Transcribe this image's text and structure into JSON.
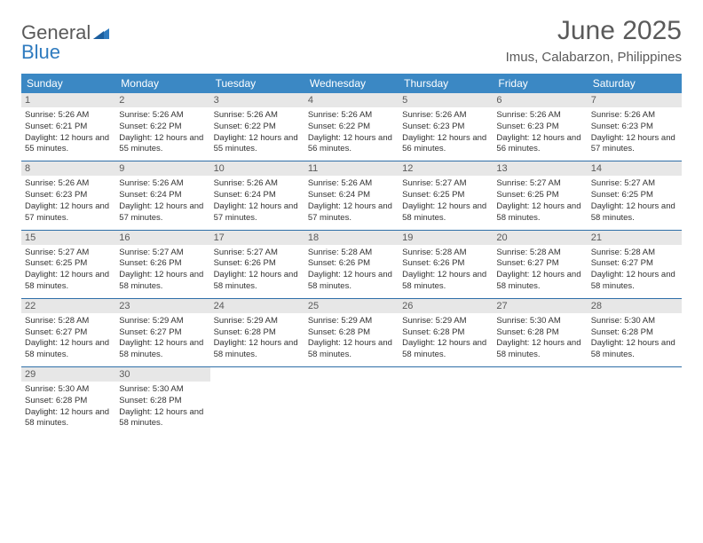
{
  "logo": {
    "general": "General",
    "blue": "Blue"
  },
  "title": "June 2025",
  "location": "Imus, Calabarzon, Philippines",
  "colors": {
    "header_bg": "#3b88c4",
    "header_text": "#ffffff",
    "daynum_bg": "#e7e7e7",
    "daynum_text": "#5a5a5a",
    "week_divider": "#2f6fa8",
    "body_text": "#333333",
    "title_text": "#5a5a5a",
    "logo_gray": "#5a5a5a",
    "logo_blue": "#2f7bbf"
  },
  "day_headers": [
    "Sunday",
    "Monday",
    "Tuesday",
    "Wednesday",
    "Thursday",
    "Friday",
    "Saturday"
  ],
  "days": [
    {
      "n": "1",
      "sr": "5:26 AM",
      "ss": "6:21 PM",
      "dl": "12 hours and 55 minutes."
    },
    {
      "n": "2",
      "sr": "5:26 AM",
      "ss": "6:22 PM",
      "dl": "12 hours and 55 minutes."
    },
    {
      "n": "3",
      "sr": "5:26 AM",
      "ss": "6:22 PM",
      "dl": "12 hours and 55 minutes."
    },
    {
      "n": "4",
      "sr": "5:26 AM",
      "ss": "6:22 PM",
      "dl": "12 hours and 56 minutes."
    },
    {
      "n": "5",
      "sr": "5:26 AM",
      "ss": "6:23 PM",
      "dl": "12 hours and 56 minutes."
    },
    {
      "n": "6",
      "sr": "5:26 AM",
      "ss": "6:23 PM",
      "dl": "12 hours and 56 minutes."
    },
    {
      "n": "7",
      "sr": "5:26 AM",
      "ss": "6:23 PM",
      "dl": "12 hours and 57 minutes."
    },
    {
      "n": "8",
      "sr": "5:26 AM",
      "ss": "6:23 PM",
      "dl": "12 hours and 57 minutes."
    },
    {
      "n": "9",
      "sr": "5:26 AM",
      "ss": "6:24 PM",
      "dl": "12 hours and 57 minutes."
    },
    {
      "n": "10",
      "sr": "5:26 AM",
      "ss": "6:24 PM",
      "dl": "12 hours and 57 minutes."
    },
    {
      "n": "11",
      "sr": "5:26 AM",
      "ss": "6:24 PM",
      "dl": "12 hours and 57 minutes."
    },
    {
      "n": "12",
      "sr": "5:27 AM",
      "ss": "6:25 PM",
      "dl": "12 hours and 58 minutes."
    },
    {
      "n": "13",
      "sr": "5:27 AM",
      "ss": "6:25 PM",
      "dl": "12 hours and 58 minutes."
    },
    {
      "n": "14",
      "sr": "5:27 AM",
      "ss": "6:25 PM",
      "dl": "12 hours and 58 minutes."
    },
    {
      "n": "15",
      "sr": "5:27 AM",
      "ss": "6:25 PM",
      "dl": "12 hours and 58 minutes."
    },
    {
      "n": "16",
      "sr": "5:27 AM",
      "ss": "6:26 PM",
      "dl": "12 hours and 58 minutes."
    },
    {
      "n": "17",
      "sr": "5:27 AM",
      "ss": "6:26 PM",
      "dl": "12 hours and 58 minutes."
    },
    {
      "n": "18",
      "sr": "5:28 AM",
      "ss": "6:26 PM",
      "dl": "12 hours and 58 minutes."
    },
    {
      "n": "19",
      "sr": "5:28 AM",
      "ss": "6:26 PM",
      "dl": "12 hours and 58 minutes."
    },
    {
      "n": "20",
      "sr": "5:28 AM",
      "ss": "6:27 PM",
      "dl": "12 hours and 58 minutes."
    },
    {
      "n": "21",
      "sr": "5:28 AM",
      "ss": "6:27 PM",
      "dl": "12 hours and 58 minutes."
    },
    {
      "n": "22",
      "sr": "5:28 AM",
      "ss": "6:27 PM",
      "dl": "12 hours and 58 minutes."
    },
    {
      "n": "23",
      "sr": "5:29 AM",
      "ss": "6:27 PM",
      "dl": "12 hours and 58 minutes."
    },
    {
      "n": "24",
      "sr": "5:29 AM",
      "ss": "6:28 PM",
      "dl": "12 hours and 58 minutes."
    },
    {
      "n": "25",
      "sr": "5:29 AM",
      "ss": "6:28 PM",
      "dl": "12 hours and 58 minutes."
    },
    {
      "n": "26",
      "sr": "5:29 AM",
      "ss": "6:28 PM",
      "dl": "12 hours and 58 minutes."
    },
    {
      "n": "27",
      "sr": "5:30 AM",
      "ss": "6:28 PM",
      "dl": "12 hours and 58 minutes."
    },
    {
      "n": "28",
      "sr": "5:30 AM",
      "ss": "6:28 PM",
      "dl": "12 hours and 58 minutes."
    },
    {
      "n": "29",
      "sr": "5:30 AM",
      "ss": "6:28 PM",
      "dl": "12 hours and 58 minutes."
    },
    {
      "n": "30",
      "sr": "5:30 AM",
      "ss": "6:28 PM",
      "dl": "12 hours and 58 minutes."
    }
  ],
  "labels": {
    "sunrise": "Sunrise: ",
    "sunset": "Sunset: ",
    "daylight": "Daylight: "
  }
}
